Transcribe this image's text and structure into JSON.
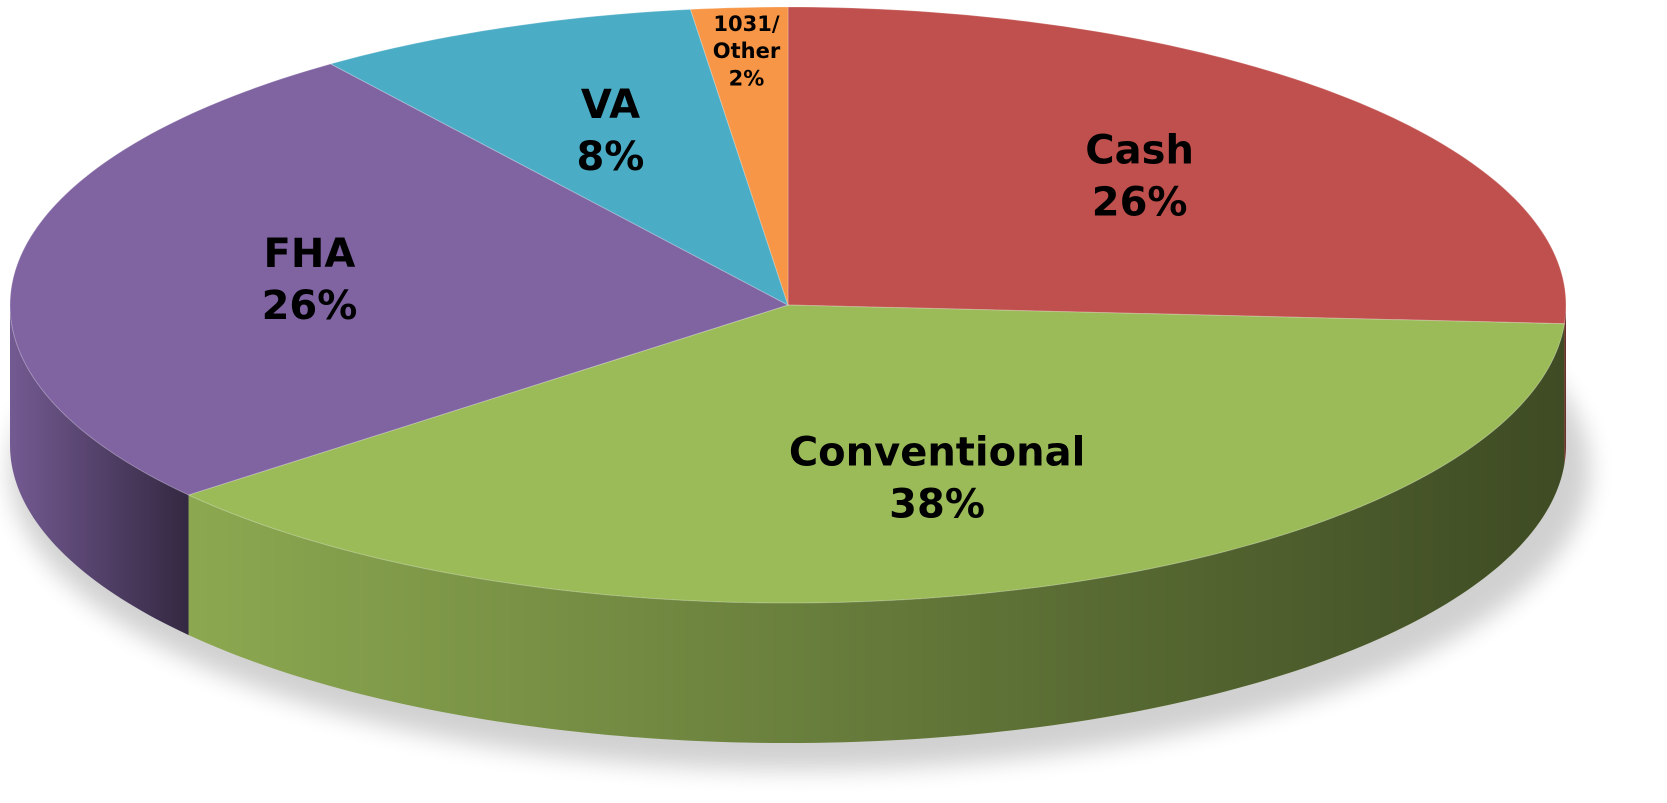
{
  "chart_data": {
    "type": "pie",
    "categories": [
      "Cash",
      "Conventional",
      "FHA",
      "VA",
      "1031/Other"
    ],
    "values": [
      26,
      38,
      26,
      8,
      2
    ],
    "value_labels": [
      "26%",
      "38%",
      "26%",
      "8%",
      "2%"
    ],
    "colors": [
      "#c0504d",
      "#9bbb59",
      "#8064a2",
      "#4bacc6",
      "#f79646"
    ]
  }
}
